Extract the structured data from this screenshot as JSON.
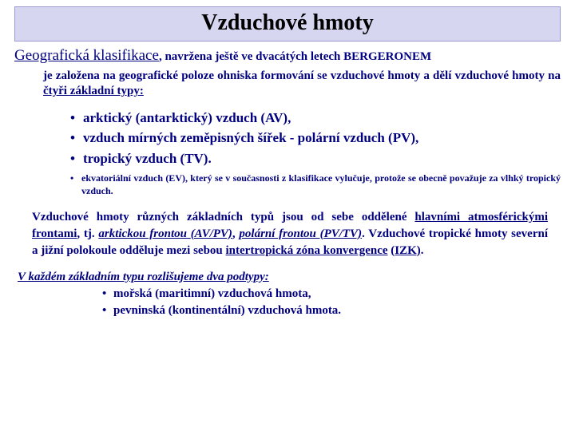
{
  "colors": {
    "title_bg": "#d6d6f0",
    "title_border": "#9a9acc",
    "text": "#000080",
    "page_bg": "#ffffff"
  },
  "fonts": {
    "family": "Times New Roman",
    "title_size_pt": 21,
    "heading_size_pt": 14,
    "body_size_pt": 11,
    "small_size_pt": 9
  },
  "title": "Vzduchové hmoty",
  "heading": {
    "lead": "Geografická klasifikace",
    "tail": ", navržena ještě ve dvacátých letech  BERGERONEM"
  },
  "intro": {
    "pre": "je  založena  na geografické  poloze ohniska  formování se  vzduchové hmoty a dělí vzduchové hmoty na ",
    "ul": "čtyři základní typy:"
  },
  "main_list": [
    "arktický (antarktický) vzduch (AV),",
    "vzduch  mírných  zeměpisných  šířek  -  polární vzduch (PV),",
    "tropický vzduch (TV)."
  ],
  "sub_list": [
    "ekvatoriální vzduch (EV), který se v současnosti z klasifikace vylučuje, protože se obecně považuje za vlhký tropický vzduch."
  ],
  "para": {
    "p1": "Vzduchové  hmoty  různých  základních  typů jsou od sebe   oddělené  ",
    "p2": "hlavními  atmosférickými   frontami",
    "p3": ", tj. ",
    "p4": "arktickou   frontou  ",
    "p5": "(AV/PV)",
    "p6": ",   ",
    "p7": "polární  frontou (PV/TV)",
    "p8": ".  Vzduchové  tropické  hmoty  severní   a jižní polokoule  odděluje  mezi sebou ",
    "p9": "intertropická zóna konvergence",
    "p10": " ",
    "p11": "(IZK)",
    "p12": "."
  },
  "subtypes_head": "V každém základním typu rozlišujeme dva podtypy:",
  "subtypes": [
    "mořská (maritimní) vzduchová hmota,",
    "pevninská (kontinentální) vzduchová hmota."
  ]
}
